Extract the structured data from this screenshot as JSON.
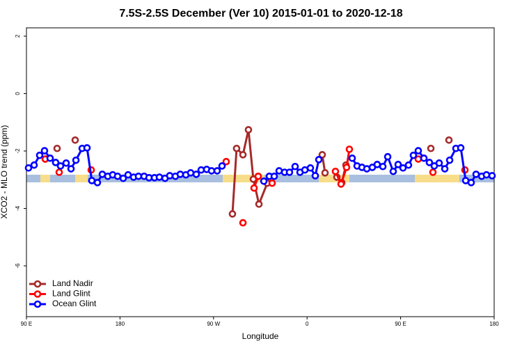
{
  "chart_data": {
    "type": "line",
    "title": "7.5S-2.5S December (Ver 10)   2015-01-01 to 2020-12-18",
    "x_label": "Longitude",
    "y_label": "XCO2 - MLO trend (ppm)",
    "xlim": [
      90,
      540
    ],
    "ylim": [
      -7.77,
      2.29
    ],
    "xticks": [
      {
        "value": 90,
        "label": "90 E"
      },
      {
        "value": 180,
        "label": "180"
      },
      {
        "value": 270,
        "label": "90 W"
      },
      {
        "value": 360,
        "label": "0"
      },
      {
        "value": 450,
        "label": "90 E"
      },
      {
        "value": 540,
        "label": "180"
      }
    ],
    "yticks": [
      2,
      0,
      -2,
      -4,
      -6
    ],
    "legend": "bottom-left",
    "series": [
      {
        "name": "Land Nadir",
        "color": "#a52a2a",
        "x": [
          119.5,
          null,
          136.9,
          null,
          288.2,
          292.2,
          298.3,
          303.6,
          308.3,
          313.7,
          321.7,
          null,
          374.6,
          377.3,
          null,
          388.7,
          393.4,
          397.4,
          null,
          479.1,
          null,
          496.5
        ],
        "values": [
          -1.91,
          null,
          -1.62,
          null,
          -4.19,
          -1.91,
          -2.13,
          -1.26,
          -2.98,
          -3.85,
          -3.12,
          null,
          -2.13,
          -2.76,
          null,
          -2.91,
          -3.1,
          -2.49,
          null,
          -1.91,
          null,
          -1.62
        ]
      },
      {
        "name": "Land Glint",
        "color": "#ff0000",
        "x": [
          108.1,
          null,
          121.5,
          null,
          152.3,
          null,
          282.2,
          null,
          298.3,
          null,
          309.0,
          313.0,
          null,
          326.4,
          null,
          387.3,
          392.7,
          398.0,
          400.7,
          null,
          467.0,
          null,
          481.1,
          null,
          511.9
        ],
        "values": [
          -2.28,
          null,
          -2.74,
          null,
          -2.66,
          null,
          -2.37,
          null,
          -4.5,
          null,
          -3.29,
          -2.88,
          null,
          -3.12,
          null,
          -2.71,
          -3.15,
          -2.57,
          -1.94,
          null,
          -2.28,
          null,
          -2.74,
          null,
          -2.66
        ]
      },
      {
        "name": "Ocean Glint",
        "color": "#0000ff",
        "x": [
          92.0,
          97.4,
          102.7,
          107.4,
          112.8,
          118.1,
          122.8,
          128.2,
          132.9,
          137.6,
          143.6,
          148.3,
          152.9,
          158.3,
          163.0,
          168.3,
          173.0,
          177.7,
          183.1,
          187.8,
          193.1,
          197.8,
          203.2,
          207.9,
          213.2,
          217.9,
          223.3,
          227.9,
          233.3,
          238.0,
          243.4,
          248.0,
          253.4,
          258.1,
          263.4,
          268.1,
          273.5,
          278.2,
          null,
          318.4,
          323.7,
          328.4,
          333.1,
          338.4,
          343.1,
          348.5,
          353.2,
          357.9,
          363.2,
          367.9,
          371.3,
          null,
          403.4,
          408.1,
          412.8,
          417.5,
          422.8,
          427.5,
          432.9,
          437.6,
          442.9,
          447.6,
          452.3,
          457.6,
          462.3,
          467.0,
          472.4,
          477.7,
          482.4,
          487.1,
          492.5,
          497.2,
          503.2,
          507.9,
          512.6,
          517.9,
          522.6,
          528.0,
          532.6,
          538.0
        ],
        "values": [
          -2.59,
          -2.49,
          -2.15,
          -1.99,
          -2.25,
          -2.4,
          -2.52,
          -2.42,
          -2.62,
          -2.32,
          -1.91,
          -1.89,
          -3.03,
          -3.1,
          -2.81,
          -2.88,
          -2.83,
          -2.88,
          -2.95,
          -2.83,
          -2.91,
          -2.88,
          -2.88,
          -2.93,
          -2.93,
          -2.91,
          -2.95,
          -2.86,
          -2.88,
          -2.81,
          -2.83,
          -2.76,
          -2.81,
          -2.66,
          -2.64,
          -2.69,
          -2.69,
          -2.52,
          null,
          -3.05,
          -2.88,
          -2.88,
          -2.69,
          -2.74,
          -2.74,
          -2.54,
          -2.74,
          -2.66,
          -2.59,
          -2.86,
          -2.3,
          null,
          -2.25,
          -2.52,
          -2.57,
          -2.62,
          -2.57,
          -2.47,
          -2.54,
          -2.2,
          -2.71,
          -2.47,
          -2.59,
          -2.49,
          -2.15,
          -1.99,
          -2.25,
          -2.4,
          -2.52,
          -2.42,
          -2.62,
          -2.32,
          -1.91,
          -1.89,
          -3.03,
          -3.1,
          -2.81,
          -2.88,
          -2.83,
          -2.86
        ]
      }
    ]
  }
}
